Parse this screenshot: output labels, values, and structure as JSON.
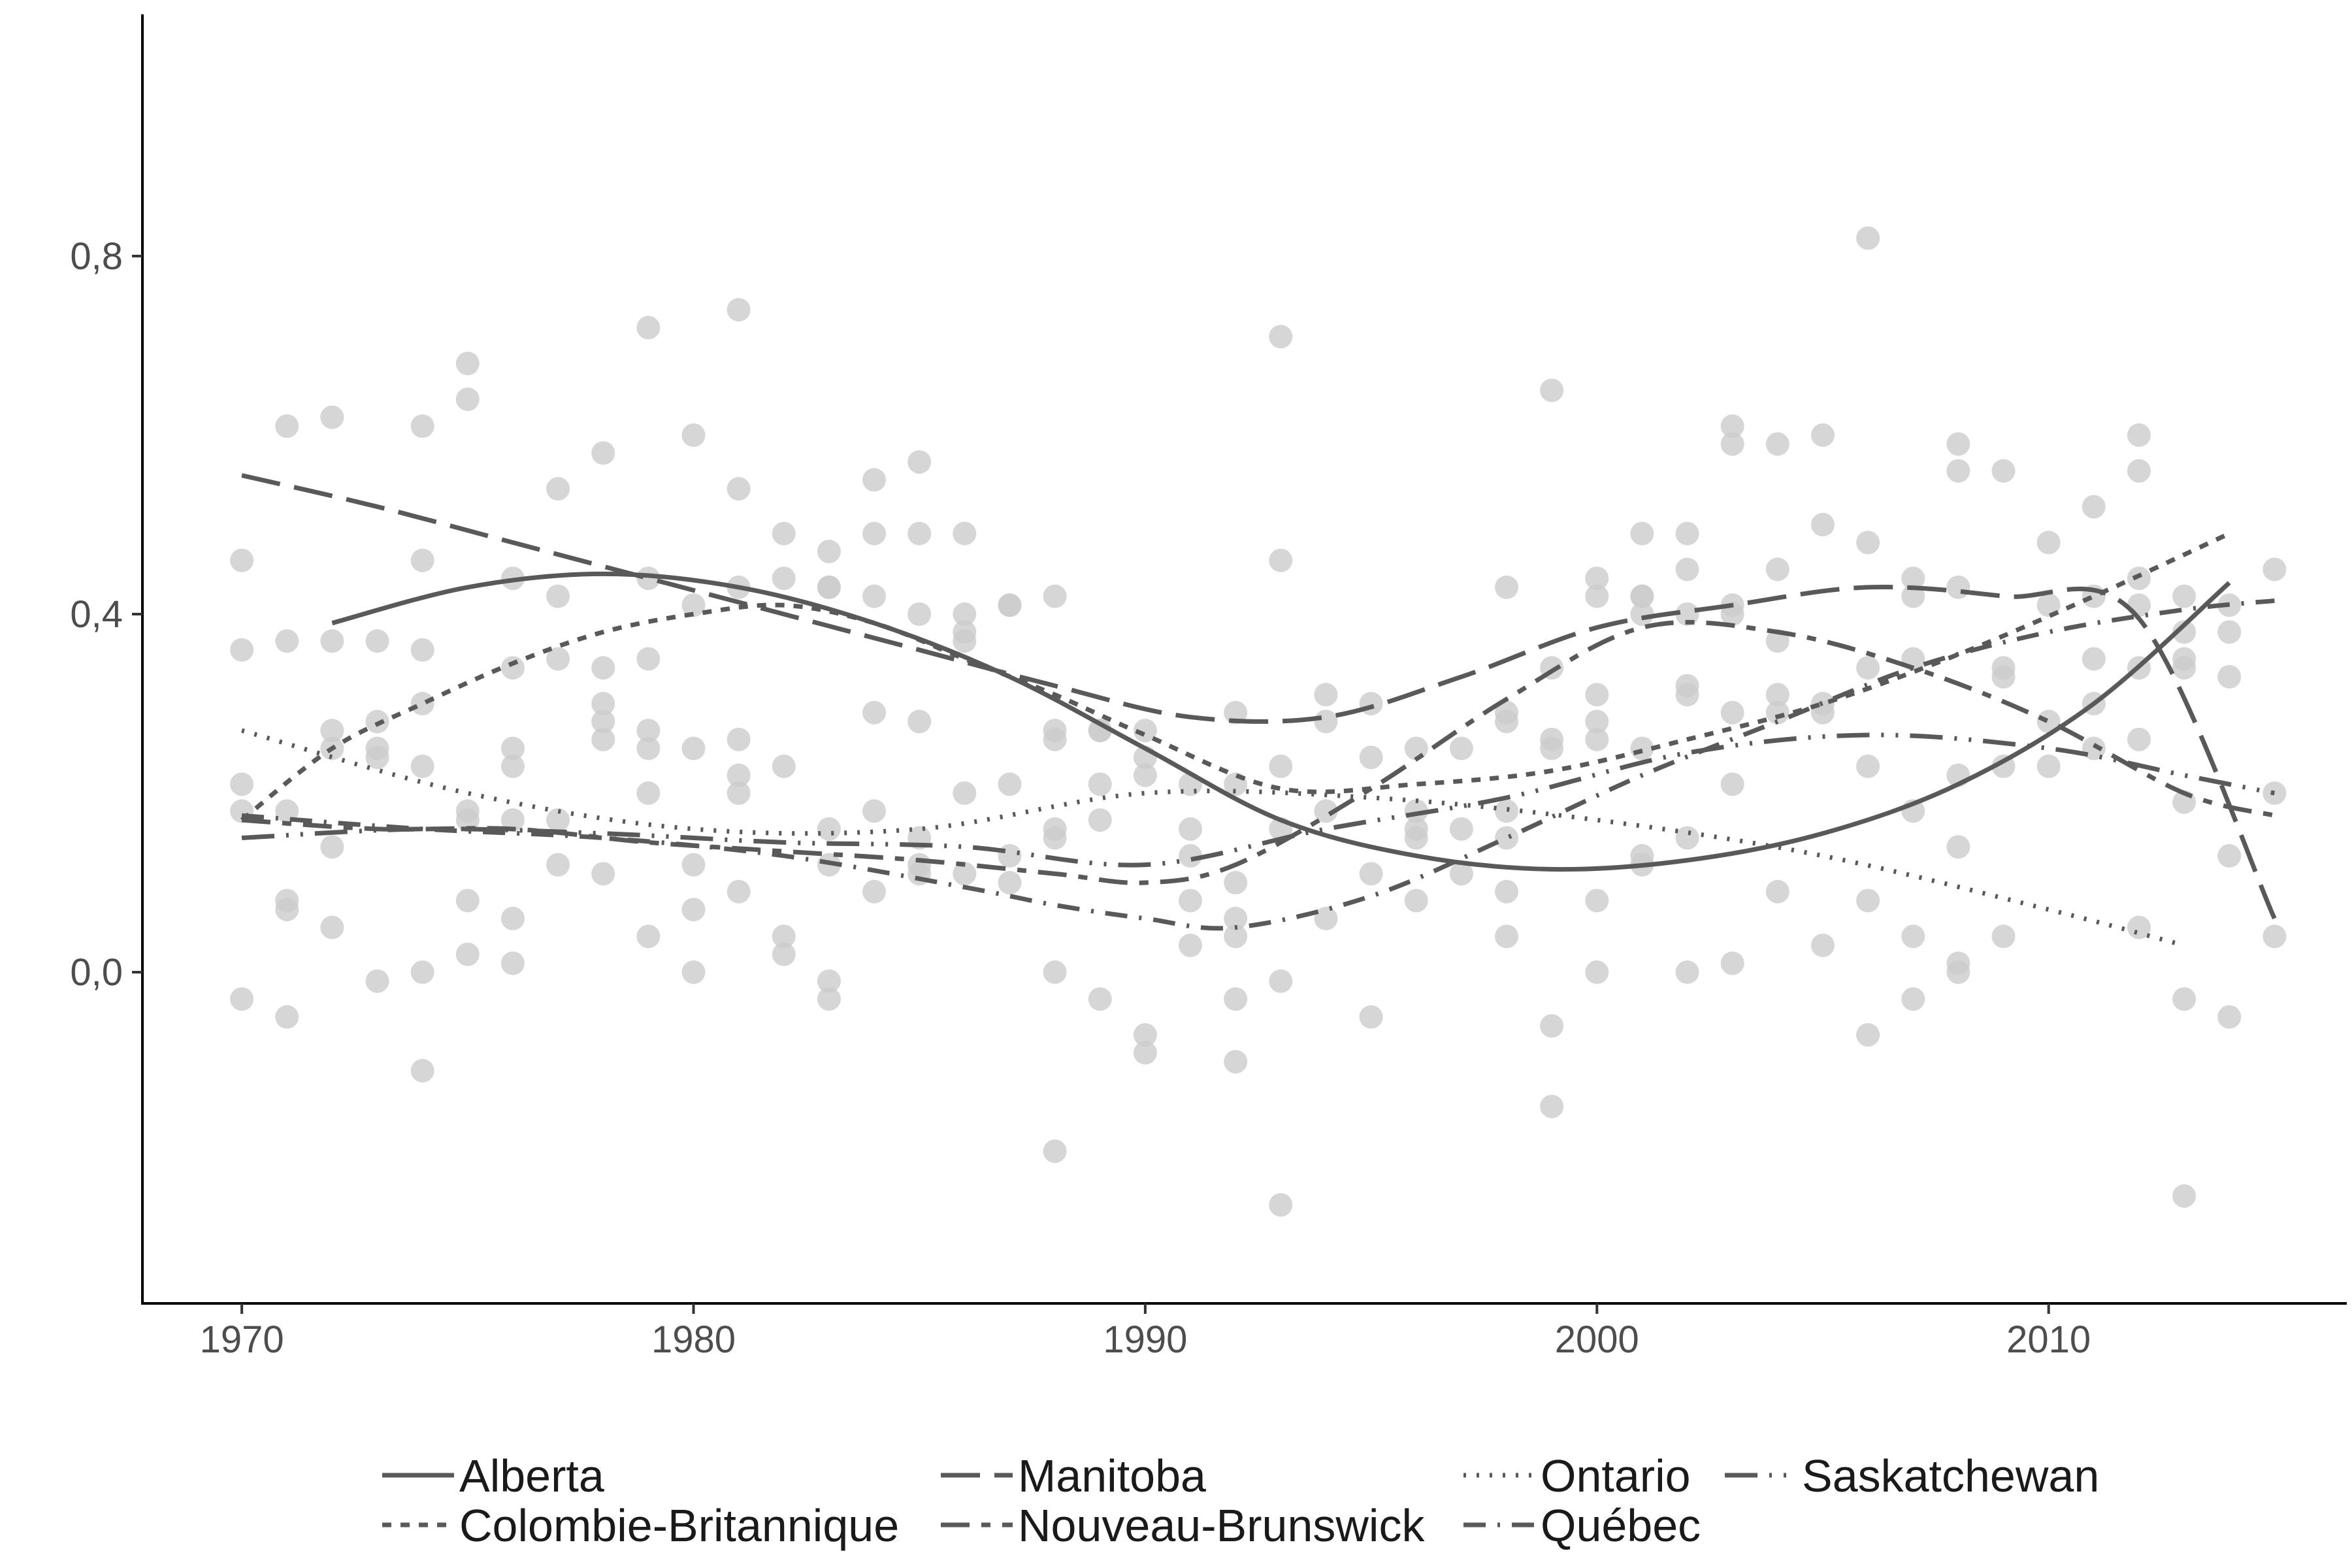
{
  "chart_data": {
    "type": "scatter",
    "title": "",
    "xlabel": "",
    "ylabel": "",
    "xlim": [
      1967.8,
      2016.6
    ],
    "ylim": [
      -0.37,
      1.07
    ],
    "x_ticks": [
      1970,
      1980,
      1990,
      2000,
      2010
    ],
    "x_tick_labels": [
      "1970",
      "1980",
      "1990",
      "2000",
      "2010"
    ],
    "y_ticks": [
      0.0,
      0.4,
      0.8
    ],
    "y_tick_labels": [
      "0,0",
      "0,4",
      "0,8"
    ],
    "grid": false,
    "legend_position": "bottom",
    "colors": {
      "points": "#cccccc",
      "lines": "#595959",
      "axis": "#000000"
    },
    "points": [
      [
        1970,
        0.46
      ],
      [
        1970,
        0.36
      ],
      [
        1970,
        0.21
      ],
      [
        1970,
        0.18
      ],
      [
        1970,
        -0.03
      ],
      [
        1971,
        0.61
      ],
      [
        1971,
        0.37
      ],
      [
        1971,
        0.18
      ],
      [
        1971,
        0.08
      ],
      [
        1971,
        0.07
      ],
      [
        1971,
        -0.05
      ],
      [
        1972,
        0.62
      ],
      [
        1972,
        0.37
      ],
      [
        1972,
        0.27
      ],
      [
        1972,
        0.25
      ],
      [
        1972,
        0.14
      ],
      [
        1972,
        0.05
      ],
      [
        1973,
        0.37
      ],
      [
        1973,
        0.28
      ],
      [
        1973,
        0.25
      ],
      [
        1973,
        0.24
      ],
      [
        1973,
        -0.01
      ],
      [
        1974,
        0.61
      ],
      [
        1974,
        0.46
      ],
      [
        1974,
        0.36
      ],
      [
        1974,
        0.3
      ],
      [
        1974,
        0.23
      ],
      [
        1974,
        0.0
      ],
      [
        1974,
        -0.11
      ],
      [
        1975,
        0.68
      ],
      [
        1975,
        0.64
      ],
      [
        1975,
        0.18
      ],
      [
        1975,
        0.17
      ],
      [
        1975,
        0.08
      ],
      [
        1975,
        0.02
      ],
      [
        1976,
        0.44
      ],
      [
        1976,
        0.34
      ],
      [
        1976,
        0.25
      ],
      [
        1976,
        0.23
      ],
      [
        1976,
        0.17
      ],
      [
        1976,
        0.06
      ],
      [
        1976,
        0.01
      ],
      [
        1977,
        0.54
      ],
      [
        1977,
        0.42
      ],
      [
        1977,
        0.35
      ],
      [
        1977,
        0.17
      ],
      [
        1977,
        0.12
      ],
      [
        1978,
        0.58
      ],
      [
        1978,
        0.34
      ],
      [
        1978,
        0.3
      ],
      [
        1978,
        0.28
      ],
      [
        1978,
        0.26
      ],
      [
        1978,
        0.11
      ],
      [
        1979,
        0.72
      ],
      [
        1979,
        0.44
      ],
      [
        1979,
        0.35
      ],
      [
        1979,
        0.27
      ],
      [
        1979,
        0.25
      ],
      [
        1979,
        0.2
      ],
      [
        1979,
        0.04
      ],
      [
        1980,
        0.6
      ],
      [
        1980,
        0.41
      ],
      [
        1980,
        0.25
      ],
      [
        1980,
        0.12
      ],
      [
        1980,
        0.07
      ],
      [
        1980,
        0.0
      ],
      [
        1981,
        0.74
      ],
      [
        1981,
        0.54
      ],
      [
        1981,
        0.43
      ],
      [
        1981,
        0.26
      ],
      [
        1981,
        0.22
      ],
      [
        1981,
        0.2
      ],
      [
        1981,
        0.09
      ],
      [
        1982,
        0.49
      ],
      [
        1982,
        0.44
      ],
      [
        1982,
        0.23
      ],
      [
        1982,
        0.04
      ],
      [
        1982,
        0.02
      ],
      [
        1983,
        0.47
      ],
      [
        1983,
        0.43
      ],
      [
        1983,
        0.43
      ],
      [
        1983,
        0.16
      ],
      [
        1983,
        0.12
      ],
      [
        1983,
        -0.01
      ],
      [
        1983,
        -0.03
      ],
      [
        1984,
        0.55
      ],
      [
        1984,
        0.49
      ],
      [
        1984,
        0.42
      ],
      [
        1984,
        0.29
      ],
      [
        1984,
        0.18
      ],
      [
        1984,
        0.09
      ],
      [
        1985,
        0.57
      ],
      [
        1985,
        0.49
      ],
      [
        1985,
        0.4
      ],
      [
        1985,
        0.28
      ],
      [
        1985,
        0.15
      ],
      [
        1985,
        0.12
      ],
      [
        1985,
        0.11
      ],
      [
        1986,
        0.49
      ],
      [
        1986,
        0.4
      ],
      [
        1986,
        0.38
      ],
      [
        1986,
        0.37
      ],
      [
        1986,
        0.2
      ],
      [
        1986,
        0.11
      ],
      [
        1987,
        0.41
      ],
      [
        1987,
        0.41
      ],
      [
        1987,
        0.21
      ],
      [
        1987,
        0.13
      ],
      [
        1987,
        0.1
      ],
      [
        1988,
        0.42
      ],
      [
        1988,
        0.27
      ],
      [
        1988,
        0.26
      ],
      [
        1988,
        0.16
      ],
      [
        1988,
        0.15
      ],
      [
        1988,
        0.0
      ],
      [
        1988,
        -0.2
      ],
      [
        1989,
        0.27
      ],
      [
        1989,
        0.27
      ],
      [
        1989,
        0.21
      ],
      [
        1989,
        0.17
      ],
      [
        1989,
        -0.03
      ],
      [
        1990,
        0.27
      ],
      [
        1990,
        0.24
      ],
      [
        1990,
        0.22
      ],
      [
        1990,
        -0.07
      ],
      [
        1990,
        -0.09
      ],
      [
        1991,
        0.21
      ],
      [
        1991,
        0.16
      ],
      [
        1991,
        0.13
      ],
      [
        1991,
        0.08
      ],
      [
        1991,
        0.03
      ],
      [
        1992,
        0.29
      ],
      [
        1992,
        0.21
      ],
      [
        1992,
        0.1
      ],
      [
        1992,
        0.06
      ],
      [
        1992,
        0.04
      ],
      [
        1992,
        -0.03
      ],
      [
        1992,
        -0.1
      ],
      [
        1993,
        0.71
      ],
      [
        1993,
        0.46
      ],
      [
        1993,
        0.23
      ],
      [
        1993,
        0.16
      ],
      [
        1993,
        -0.01
      ],
      [
        1993,
        -0.26
      ],
      [
        1994,
        0.31
      ],
      [
        1994,
        0.28
      ],
      [
        1994,
        0.18
      ],
      [
        1994,
        0.06
      ],
      [
        1995,
        0.3
      ],
      [
        1995,
        0.24
      ],
      [
        1995,
        0.11
      ],
      [
        1995,
        -0.05
      ],
      [
        1996,
        0.25
      ],
      [
        1996,
        0.18
      ],
      [
        1996,
        0.16
      ],
      [
        1996,
        0.15
      ],
      [
        1996,
        0.08
      ],
      [
        1997,
        0.25
      ],
      [
        1997,
        0.16
      ],
      [
        1997,
        0.11
      ],
      [
        1998,
        0.43
      ],
      [
        1998,
        0.29
      ],
      [
        1998,
        0.28
      ],
      [
        1998,
        0.18
      ],
      [
        1998,
        0.15
      ],
      [
        1998,
        0.09
      ],
      [
        1998,
        0.04
      ],
      [
        1999,
        0.65
      ],
      [
        1999,
        0.34
      ],
      [
        1999,
        0.26
      ],
      [
        1999,
        0.25
      ],
      [
        1999,
        -0.06
      ],
      [
        1999,
        -0.15
      ],
      [
        2000,
        0.44
      ],
      [
        2000,
        0.42
      ],
      [
        2000,
        0.31
      ],
      [
        2000,
        0.28
      ],
      [
        2000,
        0.26
      ],
      [
        2000,
        0.08
      ],
      [
        2000,
        0.0
      ],
      [
        2001,
        0.49
      ],
      [
        2001,
        0.42
      ],
      [
        2001,
        0.42
      ],
      [
        2001,
        0.4
      ],
      [
        2001,
        0.25
      ],
      [
        2001,
        0.13
      ],
      [
        2001,
        0.12
      ],
      [
        2002,
        0.49
      ],
      [
        2002,
        0.45
      ],
      [
        2002,
        0.4
      ],
      [
        2002,
        0.32
      ],
      [
        2002,
        0.31
      ],
      [
        2002,
        0.15
      ],
      [
        2002,
        0.0
      ],
      [
        2003,
        0.61
      ],
      [
        2003,
        0.59
      ],
      [
        2003,
        0.41
      ],
      [
        2003,
        0.4
      ],
      [
        2003,
        0.29
      ],
      [
        2003,
        0.21
      ],
      [
        2003,
        0.01
      ],
      [
        2004,
        0.59
      ],
      [
        2004,
        0.45
      ],
      [
        2004,
        0.37
      ],
      [
        2004,
        0.31
      ],
      [
        2004,
        0.29
      ],
      [
        2004,
        0.09
      ],
      [
        2005,
        0.6
      ],
      [
        2005,
        0.5
      ],
      [
        2005,
        0.3
      ],
      [
        2005,
        0.29
      ],
      [
        2005,
        0.03
      ],
      [
        2006,
        0.82
      ],
      [
        2006,
        0.48
      ],
      [
        2006,
        0.34
      ],
      [
        2006,
        0.23
      ],
      [
        2006,
        0.08
      ],
      [
        2006,
        -0.07
      ],
      [
        2007,
        0.44
      ],
      [
        2007,
        0.42
      ],
      [
        2007,
        0.35
      ],
      [
        2007,
        0.18
      ],
      [
        2007,
        0.04
      ],
      [
        2007,
        -0.03
      ],
      [
        2008,
        0.59
      ],
      [
        2008,
        0.56
      ],
      [
        2008,
        0.43
      ],
      [
        2008,
        0.22
      ],
      [
        2008,
        0.14
      ],
      [
        2008,
        0.01
      ],
      [
        2008,
        0.0
      ],
      [
        2009,
        0.56
      ],
      [
        2009,
        0.34
      ],
      [
        2009,
        0.33
      ],
      [
        2009,
        0.23
      ],
      [
        2009,
        0.04
      ],
      [
        2010,
        0.48
      ],
      [
        2010,
        0.41
      ],
      [
        2010,
        0.28
      ],
      [
        2010,
        0.23
      ],
      [
        2011,
        0.52
      ],
      [
        2011,
        0.42
      ],
      [
        2011,
        0.35
      ],
      [
        2011,
        0.3
      ],
      [
        2011,
        0.25
      ],
      [
        2012,
        0.6
      ],
      [
        2012,
        0.56
      ],
      [
        2012,
        0.44
      ],
      [
        2012,
        0.41
      ],
      [
        2012,
        0.34
      ],
      [
        2012,
        0.26
      ],
      [
        2012,
        0.05
      ],
      [
        2013,
        0.42
      ],
      [
        2013,
        0.38
      ],
      [
        2013,
        0.35
      ],
      [
        2013,
        0.34
      ],
      [
        2013,
        0.19
      ],
      [
        2013,
        -0.03
      ],
      [
        2013,
        -0.25
      ],
      [
        2014,
        0.41
      ],
      [
        2014,
        0.38
      ],
      [
        2014,
        0.33
      ],
      [
        2014,
        0.13
      ],
      [
        2014,
        -0.05
      ],
      [
        2015,
        0.45
      ],
      [
        2015,
        0.2
      ],
      [
        2015,
        0.04
      ]
    ],
    "series": [
      {
        "name": "Alberta",
        "dash": "solid",
        "x": [
          1972,
          1975,
          1978,
          1981,
          1984,
          1987,
          1990,
          1993,
          1996,
          1999,
          2002,
          2005,
          2008,
          2011,
          2014
        ],
        "y": [
          0.39,
          0.43,
          0.445,
          0.43,
          0.39,
          0.33,
          0.25,
          0.17,
          0.13,
          0.115,
          0.125,
          0.155,
          0.21,
          0.3,
          0.435
        ]
      },
      {
        "name": "Colombie-Britannique",
        "dash": "short",
        "x": [
          1970,
          1972,
          1974,
          1976,
          1978,
          1980,
          1982,
          1984,
          1986,
          1988,
          1990,
          1993,
          1996,
          1999,
          2002,
          2005,
          2008,
          2011,
          2014
        ],
        "y": [
          0.17,
          0.25,
          0.3,
          0.345,
          0.38,
          0.4,
          0.41,
          0.39,
          0.35,
          0.31,
          0.265,
          0.205,
          0.21,
          0.225,
          0.26,
          0.3,
          0.355,
          0.42,
          0.49
        ]
      },
      {
        "name": "Manitoba",
        "dash": "long",
        "x": [
          1970,
          1973,
          1976,
          1979,
          1982,
          1985,
          1988,
          1991,
          1994,
          1997,
          2000,
          2003,
          2006,
          2009,
          2012,
          2015
        ],
        "y": [
          0.555,
          0.52,
          0.48,
          0.44,
          0.4,
          0.36,
          0.32,
          0.285,
          0.285,
          0.33,
          0.385,
          0.41,
          0.43,
          0.42,
          0.395,
          0.06
        ]
      },
      {
        "name": "Nouveau-Brunswick",
        "dash": "longmid",
        "x": [
          1970,
          1973,
          1976,
          1979,
          1982,
          1985,
          1988,
          1990,
          1992,
          1995,
          1998,
          2001,
          2004,
          2007,
          2010,
          2013,
          2015
        ],
        "y": [
          0.17,
          0.16,
          0.16,
          0.145,
          0.135,
          0.125,
          0.11,
          0.1,
          0.12,
          0.205,
          0.305,
          0.385,
          0.38,
          0.34,
          0.28,
          0.2,
          0.175
        ]
      },
      {
        "name": "Ontario",
        "dash": "dotted",
        "x": [
          1970,
          1975,
          1980,
          1985,
          1990,
          1995,
          2000,
          2005,
          2010,
          2013
        ],
        "y": [
          0.27,
          0.2,
          0.16,
          0.16,
          0.2,
          0.195,
          0.17,
          0.13,
          0.07,
          0.03
        ]
      },
      {
        "name": "Québec",
        "dash": "dashmix",
        "x": [
          1970,
          1974,
          1978,
          1982,
          1986,
          1988,
          1990,
          1992,
          1995,
          1998,
          2001,
          2004,
          2007,
          2010,
          2013,
          2015
        ],
        "y": [
          0.175,
          0.16,
          0.15,
          0.13,
          0.095,
          0.075,
          0.06,
          0.05,
          0.085,
          0.15,
          0.22,
          0.28,
          0.34,
          0.38,
          0.405,
          0.415
        ]
      },
      {
        "name": "Saskatchewan",
        "dash": "dashdot",
        "x": [
          1970,
          1974,
          1978,
          1982,
          1986,
          1990,
          1994,
          1998,
          2002,
          2006,
          2010,
          2013,
          2015
        ],
        "y": [
          0.15,
          0.16,
          0.155,
          0.145,
          0.14,
          0.12,
          0.16,
          0.195,
          0.245,
          0.265,
          0.25,
          0.22,
          0.2
        ]
      }
    ]
  }
}
